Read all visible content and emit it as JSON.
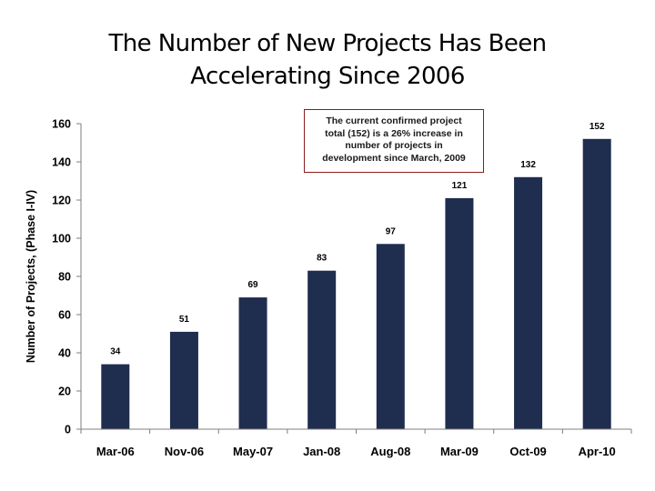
{
  "slide": {
    "title_line1": "The Number of New Projects Has Been",
    "title_line2": "Accelerating Since 2006"
  },
  "callout": {
    "lines": [
      "The current confirmed project",
      "total (152) is a 26% increase in",
      "number of projects in",
      "development since March, 2009"
    ]
  },
  "chart_data": {
    "type": "bar",
    "title": "The Number of New Projects Has Been Accelerating Since 2006",
    "categories": [
      "Mar-06",
      "Nov-06",
      "May-07",
      "Jan-08",
      "Aug-08",
      "Mar-09",
      "Oct-09",
      "Apr-10"
    ],
    "values": [
      34,
      51,
      69,
      83,
      97,
      121,
      132,
      152
    ],
    "data_labels": [
      "34",
      "51",
      "69",
      "83",
      "97",
      "121",
      "132",
      "152"
    ],
    "xlabel": "",
    "ylabel": "Number of Projects, (Phase I-IV)",
    "ylim": [
      0,
      160
    ],
    "yticks": [
      0,
      20,
      40,
      60,
      80,
      100,
      120,
      140,
      160
    ],
    "grid": false,
    "legend": "none",
    "bar_color": "#1f2d4f",
    "annotation": "The current confirmed project total (152) is a 26% increase in number of projects in development since March, 2009"
  }
}
